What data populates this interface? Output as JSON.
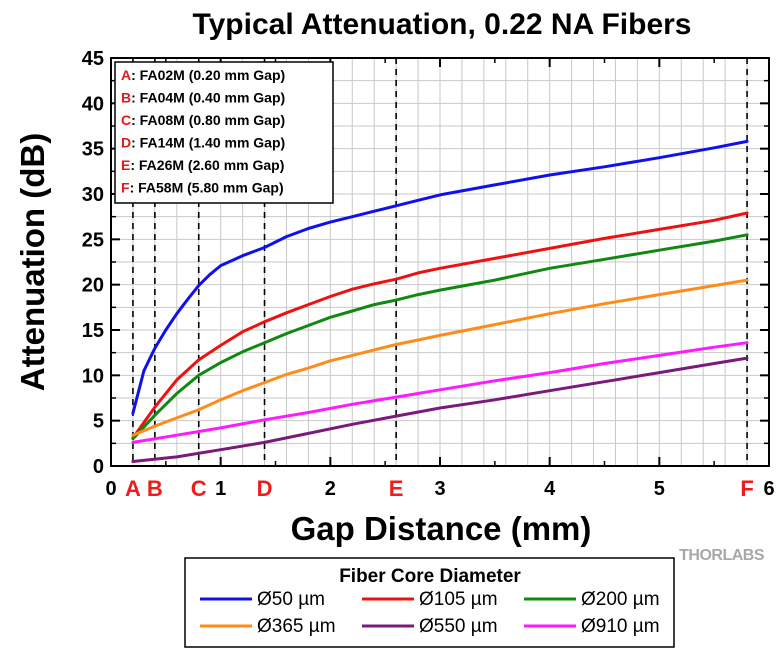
{
  "chart_data": {
    "type": "line",
    "title": "Typical Attenuation, 0.22 NA Fibers",
    "xlabel": "Gap Distance (mm)",
    "ylabel": "Attenuation (dB)",
    "xlim": [
      0,
      6
    ],
    "ylim": [
      0,
      45
    ],
    "xticks": [
      "0",
      "1",
      "2",
      "3",
      "4",
      "5",
      "6"
    ],
    "yticks": [
      "0",
      "5",
      "10",
      "15",
      "20",
      "25",
      "30",
      "35",
      "40",
      "45"
    ],
    "grid": true,
    "markers": [
      {
        "letter": "A",
        "x": 0.2
      },
      {
        "letter": "B",
        "x": 0.4
      },
      {
        "letter": "C",
        "x": 0.8
      },
      {
        "letter": "D",
        "x": 1.4
      },
      {
        "letter": "E",
        "x": 2.6
      },
      {
        "letter": "F",
        "x": 5.8
      }
    ],
    "annotations": [
      {
        "letter": "A",
        "text": ": FA02M (0.20 mm Gap)"
      },
      {
        "letter": "B",
        "text": ": FA04M (0.40 mm Gap)"
      },
      {
        "letter": "C",
        "text": ": FA08M (0.80 mm Gap)"
      },
      {
        "letter": "D",
        "text": ": FA14M (1.40 mm Gap)"
      },
      {
        "letter": "E",
        "text": ": FA26M (2.60 mm Gap)"
      },
      {
        "letter": "F",
        "text": ": FA58M (5.80 mm Gap)"
      }
    ],
    "legend_title": "Fiber Core Diameter",
    "legend_position": "bottom",
    "series": [
      {
        "name": "Ø50 µm",
        "color": "#1010ee",
        "x": [
          0.2,
          0.3,
          0.4,
          0.5,
          0.6,
          0.7,
          0.8,
          0.9,
          1.0,
          1.2,
          1.4,
          1.6,
          1.8,
          2.0,
          2.2,
          2.4,
          2.6,
          2.8,
          3.0,
          3.5,
          4.0,
          4.5,
          5.0,
          5.5,
          5.8
        ],
        "y": [
          5.8,
          10.5,
          13.0,
          15.0,
          16.8,
          18.4,
          19.9,
          21.1,
          22.1,
          23.2,
          24.1,
          25.3,
          26.2,
          26.9,
          27.5,
          28.1,
          28.7,
          29.3,
          29.9,
          31.0,
          32.1,
          33.0,
          34.0,
          35.1,
          35.8
        ]
      },
      {
        "name": "Ø105 µm",
        "color": "#ee1111",
        "x": [
          0.2,
          0.4,
          0.6,
          0.8,
          1.0,
          1.2,
          1.4,
          1.6,
          1.8,
          2.0,
          2.2,
          2.4,
          2.6,
          2.8,
          3.0,
          3.5,
          4.0,
          4.5,
          5.0,
          5.5,
          5.8
        ],
        "y": [
          3.1,
          6.5,
          9.5,
          11.7,
          13.3,
          14.8,
          15.9,
          16.9,
          17.8,
          18.7,
          19.5,
          20.1,
          20.6,
          21.3,
          21.8,
          22.9,
          24.0,
          25.1,
          26.1,
          27.1,
          27.9
        ]
      },
      {
        "name": "Ø200 µm",
        "color": "#118811",
        "x": [
          0.2,
          0.4,
          0.6,
          0.8,
          1.0,
          1.2,
          1.4,
          1.6,
          1.8,
          2.0,
          2.2,
          2.4,
          2.6,
          2.8,
          3.0,
          3.5,
          4.0,
          4.5,
          5.0,
          5.5,
          5.8
        ],
        "y": [
          3.0,
          5.6,
          8.0,
          10.0,
          11.4,
          12.6,
          13.6,
          14.6,
          15.5,
          16.4,
          17.1,
          17.8,
          18.3,
          18.9,
          19.4,
          20.5,
          21.8,
          22.8,
          23.8,
          24.8,
          25.5
        ]
      },
      {
        "name": "Ø365 µm",
        "color": "#ff8c1a",
        "x": [
          0.2,
          0.4,
          0.6,
          0.8,
          1.0,
          1.2,
          1.4,
          1.6,
          1.8,
          2.0,
          2.2,
          2.4,
          2.6,
          2.8,
          3.0,
          3.5,
          4.0,
          4.5,
          5.0,
          5.5,
          5.8
        ],
        "y": [
          3.4,
          4.4,
          5.3,
          6.2,
          7.3,
          8.3,
          9.2,
          10.1,
          10.8,
          11.6,
          12.2,
          12.8,
          13.4,
          13.9,
          14.4,
          15.6,
          16.8,
          17.9,
          18.9,
          19.9,
          20.5
        ]
      },
      {
        "name": "Ø550 µm",
        "color": "#7a1a7a",
        "x": [
          0.2,
          0.6,
          1.0,
          1.4,
          1.8,
          2.2,
          2.6,
          3.0,
          3.5,
          4.0,
          4.5,
          5.0,
          5.5,
          5.8
        ],
        "y": [
          0.5,
          1.0,
          1.8,
          2.6,
          3.6,
          4.6,
          5.5,
          6.4,
          7.3,
          8.3,
          9.3,
          10.3,
          11.3,
          11.9
        ]
      },
      {
        "name": "Ø910 µm",
        "color": "#ff1aff",
        "x": [
          0.2,
          0.6,
          1.0,
          1.4,
          1.8,
          2.2,
          2.6,
          3.0,
          3.5,
          4.0,
          4.5,
          5.0,
          5.5,
          5.8
        ],
        "y": [
          2.6,
          3.4,
          4.2,
          5.1,
          5.9,
          6.8,
          7.6,
          8.4,
          9.4,
          10.3,
          11.3,
          12.2,
          13.1,
          13.6
        ]
      }
    ]
  },
  "brand": "THORLABS"
}
